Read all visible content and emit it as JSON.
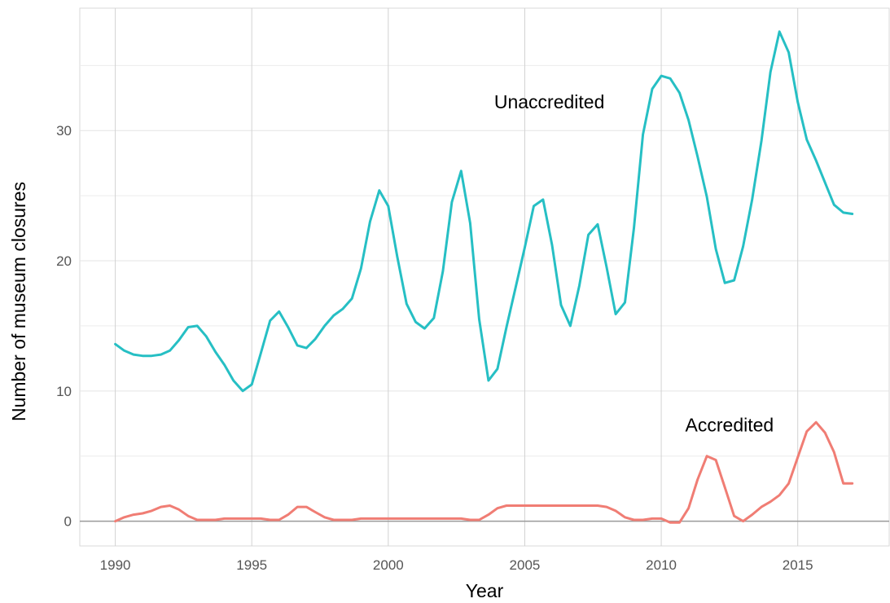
{
  "chart_data": {
    "type": "line",
    "xlabel": "Year",
    "ylabel": "Number of museum closures",
    "xlim": [
      1988.7,
      1991.35
    ],
    "ylim": [
      -1.9,
      39.4
    ],
    "x_ticks": [
      1990,
      1995,
      2000,
      2005,
      2010,
      2015
    ],
    "y_ticks": [
      0,
      10,
      20,
      30
    ],
    "grid": true,
    "legend": "none",
    "series": [
      {
        "name": "Unaccredited",
        "color": "#26BFC4",
        "label_at": [
          2005.9,
          32.2
        ],
        "x": [
          1990.0,
          1990.33,
          1990.67,
          1991.0,
          1991.33,
          1991.67,
          1992.0,
          1992.33,
          1992.67,
          1993.0,
          1993.33,
          1993.67,
          1994.0,
          1994.33,
          1994.67,
          1995.0,
          1995.33,
          1995.67,
          1996.0,
          1996.33,
          1996.67,
          1997.0,
          1997.33,
          1997.67,
          1998.0,
          1998.33,
          1998.67,
          1999.0,
          1999.33,
          1999.67,
          2000.0,
          2000.33,
          2000.67,
          2001.0,
          2001.33,
          2001.67,
          2002.0,
          2002.33,
          2002.67,
          2003.0,
          2003.33,
          2003.67,
          2004.0,
          2004.33,
          2004.67,
          2005.0,
          2005.33,
          2005.67,
          2006.0,
          2006.33,
          2006.67,
          2007.0,
          2007.33,
          2007.67,
          2008.0,
          2008.33,
          2008.67,
          2009.0,
          2009.33,
          2009.67,
          2010.0,
          2010.33,
          2010.67,
          2011.0,
          2011.33,
          2011.67,
          2012.0,
          2012.33,
          2012.67,
          2013.0,
          2013.33,
          2013.67,
          2014.0,
          2014.33,
          2014.67,
          2015.0,
          2015.33,
          2015.67,
          2016.0,
          2016.33,
          2016.67,
          2017.0
        ],
        "values": [
          13.6,
          13.1,
          12.8,
          12.7,
          12.7,
          12.8,
          13.1,
          13.9,
          14.9,
          15.0,
          14.2,
          13.0,
          12.0,
          10.8,
          10.0,
          10.5,
          12.9,
          15.4,
          16.1,
          14.9,
          13.5,
          13.3,
          14.0,
          15.0,
          15.8,
          16.3,
          17.1,
          19.4,
          23.0,
          25.4,
          24.2,
          20.3,
          16.7,
          15.3,
          14.8,
          15.6,
          19.2,
          24.5,
          26.9,
          22.9,
          15.5,
          10.8,
          11.7,
          14.9,
          18.0,
          21.0,
          24.2,
          24.7,
          21.2,
          16.6,
          15.0,
          18.1,
          22.0,
          22.8,
          19.5,
          15.9,
          16.8,
          22.5,
          29.7,
          33.2,
          34.2,
          34.0,
          32.9,
          30.8,
          28.0,
          24.9,
          20.9,
          18.3,
          18.5,
          21.1,
          24.7,
          29.2,
          34.5,
          37.6,
          36.0,
          32.2,
          29.3,
          27.7,
          26.0,
          24.3,
          23.7,
          23.6
        ]
      },
      {
        "name": "Accredited",
        "color": "#F07D74",
        "label_at": [
          2012.5,
          7.4
        ],
        "x": [
          1990.0,
          1990.33,
          1990.67,
          1991.0,
          1991.33,
          1991.67,
          1992.0,
          1992.33,
          1992.67,
          1993.0,
          1993.33,
          1993.67,
          1994.0,
          1994.33,
          1994.67,
          1995.0,
          1995.33,
          1995.67,
          1996.0,
          1996.33,
          1996.67,
          1997.0,
          1997.33,
          1997.67,
          1998.0,
          1998.33,
          1998.67,
          1999.0,
          1999.33,
          1999.67,
          2000.0,
          2000.33,
          2000.67,
          2001.0,
          2001.33,
          2001.67,
          2002.0,
          2002.33,
          2002.67,
          2003.0,
          2003.33,
          2003.67,
          2004.0,
          2004.33,
          2004.67,
          2005.0,
          2005.33,
          2005.67,
          2006.0,
          2006.33,
          2006.67,
          2007.0,
          2007.33,
          2007.67,
          2008.0,
          2008.33,
          2008.67,
          2009.0,
          2009.33,
          2009.67,
          2010.0,
          2010.33,
          2010.67,
          2011.0,
          2011.33,
          2011.67,
          2012.0,
          2012.33,
          2012.67,
          2013.0,
          2013.33,
          2013.67,
          2014.0,
          2014.33,
          2014.67,
          2015.0,
          2015.33,
          2015.67,
          2016.0,
          2016.33,
          2016.67,
          2017.0
        ],
        "values": [
          0.0,
          0.3,
          0.5,
          0.6,
          0.8,
          1.1,
          1.2,
          0.9,
          0.4,
          0.1,
          0.1,
          0.1,
          0.2,
          0.2,
          0.2,
          0.2,
          0.2,
          0.1,
          0.1,
          0.5,
          1.1,
          1.1,
          0.7,
          0.3,
          0.1,
          0.1,
          0.1,
          0.2,
          0.2,
          0.2,
          0.2,
          0.2,
          0.2,
          0.2,
          0.2,
          0.2,
          0.2,
          0.2,
          0.2,
          0.1,
          0.1,
          0.5,
          1.0,
          1.2,
          1.2,
          1.2,
          1.2,
          1.2,
          1.2,
          1.2,
          1.2,
          1.2,
          1.2,
          1.2,
          1.1,
          0.8,
          0.3,
          0.1,
          0.1,
          0.2,
          0.2,
          -0.1,
          -0.1,
          1.0,
          3.2,
          5.0,
          4.7,
          2.6,
          0.4,
          0.0,
          0.5,
          1.1,
          1.5,
          2.0,
          2.9,
          4.9,
          6.9,
          7.6,
          6.8,
          5.3,
          2.9,
          2.9
        ]
      }
    ]
  }
}
